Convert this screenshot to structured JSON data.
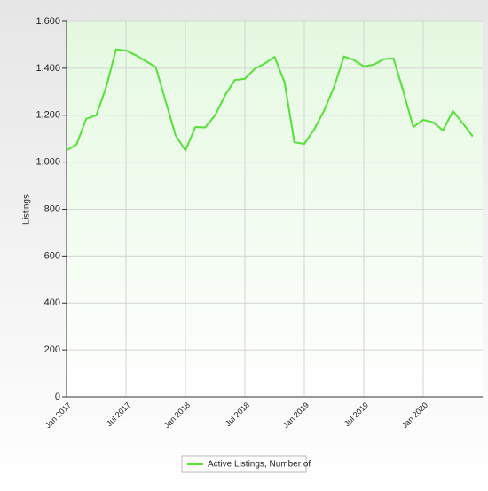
{
  "chart_data": {
    "type": "line",
    "y_label": "Listings",
    "categories": [
      "Jan 2017",
      null,
      null,
      null,
      null,
      null,
      "Jul 2017",
      null,
      null,
      null,
      null,
      null,
      "Jan 2018",
      null,
      null,
      null,
      null,
      null,
      "Jul 2018",
      null,
      null,
      null,
      null,
      null,
      "Jan 2019",
      null,
      null,
      null,
      null,
      null,
      "Jul 2019",
      null,
      null,
      null,
      null,
      null,
      "Jan 2020",
      null,
      null,
      null,
      null,
      null
    ],
    "series": [
      {
        "name": "Active Listings, Number of",
        "color": "#55e03a",
        "values": [
          1050,
          1075,
          1185,
          1200,
          1320,
          1480,
          1475,
          1455,
          1430,
          1405,
          1260,
          1115,
          1050,
          1150,
          1148,
          1200,
          1285,
          1350,
          1355,
          1398,
          1420,
          1448,
          1340,
          1085,
          1078,
          1140,
          1220,
          1320,
          1450,
          1435,
          1408,
          1415,
          1438,
          1442,
          1300,
          1150,
          1180,
          1170,
          1135,
          1218,
          1165,
          1110
        ]
      }
    ],
    "ylim": [
      0,
      1600
    ],
    "yticks": [
      0,
      200,
      400,
      600,
      800,
      {
        "value": 1000,
        "label": "1,000"
      },
      {
        "value": 1200,
        "label": "1,200"
      },
      {
        "value": 1400,
        "label": "1,400"
      },
      {
        "value": 1600,
        "label": "1,600"
      }
    ],
    "grid": true,
    "legend": "bottom"
  }
}
